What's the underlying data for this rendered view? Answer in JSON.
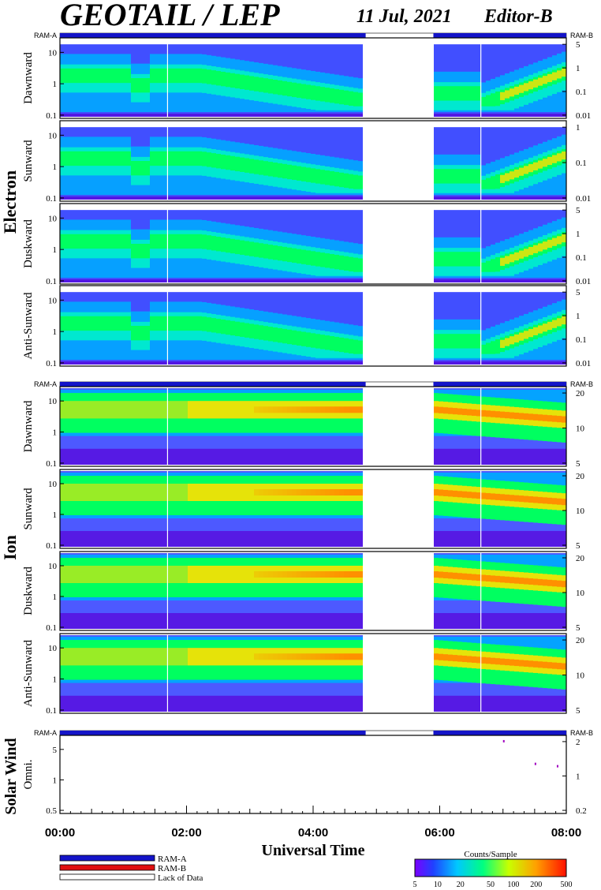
{
  "header": {
    "title": "GEOTAIL / LEP",
    "date": "11 Jul, 2021",
    "editor": "Editor-B"
  },
  "groups": {
    "electron": "Electron",
    "ion": "Ion",
    "solar_wind": "Solar Wind"
  },
  "ram_labels": {
    "a": "RAM-A",
    "b": "RAM-B"
  },
  "panels": [
    {
      "id": "e1",
      "group": "electron",
      "label": "Dawnward",
      "left_ticks": [
        "10",
        "1",
        "0.1"
      ],
      "right_ticks": [
        "5",
        "1",
        "0.1",
        "0.01"
      ]
    },
    {
      "id": "e2",
      "group": "electron",
      "label": "Sunward",
      "left_ticks": [
        "10",
        "1",
        "0.1"
      ],
      "right_ticks": [
        "1",
        "0.1",
        "0.01"
      ]
    },
    {
      "id": "e3",
      "group": "electron",
      "label": "Duskward",
      "left_ticks": [
        "10",
        "1",
        "0.1"
      ],
      "right_ticks": [
        "5",
        "1",
        "0.1",
        "0.01"
      ]
    },
    {
      "id": "e4",
      "group": "electron",
      "label": "Anti-Sunward",
      "left_ticks": [
        "10",
        "1",
        "0.1"
      ],
      "right_ticks": [
        "5",
        "1",
        "0.1",
        "0.01"
      ]
    },
    {
      "id": "i1",
      "group": "ion",
      "label": "Dawnward",
      "left_ticks": [
        "10",
        "1",
        "0.1"
      ],
      "right_ticks": [
        "20",
        "10",
        "5"
      ]
    },
    {
      "id": "i2",
      "group": "ion",
      "label": "Sunward",
      "left_ticks": [
        "10",
        "1",
        "0.1"
      ],
      "right_ticks": [
        "20",
        "10",
        "5"
      ]
    },
    {
      "id": "i3",
      "group": "ion",
      "label": "Duskward",
      "left_ticks": [
        "10",
        "1",
        "0.1"
      ],
      "right_ticks": [
        "20",
        "10",
        "5"
      ]
    },
    {
      "id": "i4",
      "group": "ion",
      "label": "Anti-Sunward",
      "left_ticks": [
        "10",
        "1",
        "0.1"
      ],
      "right_ticks": [
        "20",
        "10",
        "5"
      ]
    },
    {
      "id": "sw",
      "group": "solar_wind",
      "label": "Omni.",
      "left_ticks": [
        "5",
        "1",
        "0.5"
      ],
      "right_ticks": [
        "2",
        "1",
        "0.2"
      ]
    }
  ],
  "chart_data": {
    "type": "heatmap",
    "xlabel": "Universal Time",
    "x_ticks": [
      "00:00",
      "02:00",
      "04:00",
      "06:00",
      "08:00"
    ],
    "x_range_hours": [
      0,
      8
    ],
    "data_gap_hours": [
      4.83,
      5.9
    ],
    "data_gap_marker_hours": [
      1.7,
      6.65
    ],
    "colorbar": {
      "title": "Counts/Sample",
      "ticks": [
        "5",
        "10",
        "20",
        "50",
        "100",
        "200",
        "500"
      ],
      "range": [
        5,
        500
      ],
      "scale": "log"
    },
    "mode_bar": {
      "segments": [
        {
          "start_hours": 0.0,
          "end_hours": 4.83,
          "mode": "RAM-A"
        },
        {
          "start_hours": 4.83,
          "end_hours": 5.9,
          "mode": "Lack of Data"
        },
        {
          "start_hours": 5.9,
          "end_hours": 8.0,
          "mode": "RAM-A"
        }
      ]
    }
  },
  "legend": [
    {
      "label": "RAM-A",
      "color": "#1414c8"
    },
    {
      "label": "RAM-B",
      "color": "#e01010"
    },
    {
      "label": "Lack of Data",
      "color": "#ffffff"
    }
  ]
}
